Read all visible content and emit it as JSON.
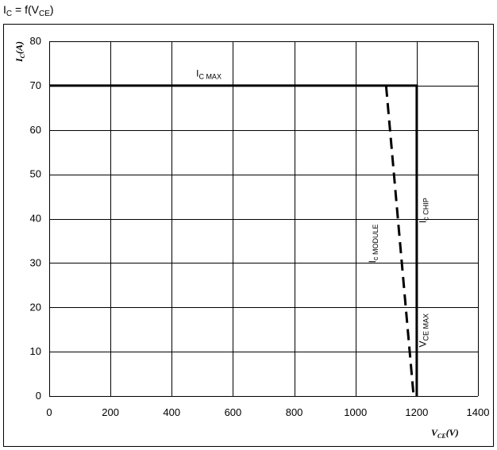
{
  "chart_data": {
    "type": "line",
    "title": {
      "main": "I",
      "main_sub": "C",
      "rest": " = f(V",
      "rest_sub": "CE",
      "tail": ")"
    },
    "xlabel": {
      "main": "V",
      "sub": "CE",
      "unit": "(V)"
    },
    "ylabel": {
      "main": "I",
      "sub": "C",
      "unit": "(A)"
    },
    "xlim": [
      0,
      1400
    ],
    "ylim": [
      0,
      80
    ],
    "xticks": [
      0,
      200,
      400,
      600,
      800,
      1000,
      1200,
      1400
    ],
    "yticks": [
      0,
      10,
      20,
      30,
      40,
      50,
      60,
      70,
      80
    ],
    "grid": true,
    "series": [
      {
        "name": "I_C CHIP",
        "style": "solid",
        "color": "#000000",
        "x": [
          0,
          1200,
          1200
        ],
        "y": [
          70,
          70,
          0
        ]
      },
      {
        "name": "I_C MODULE",
        "style": "dashed",
        "color": "#000000",
        "x": [
          1100,
          1190
        ],
        "y": [
          70,
          0
        ]
      }
    ],
    "annotations": [
      {
        "main": "I",
        "sub": "C MAX",
        "x": 480,
        "y": 72,
        "rotate": false
      },
      {
        "main": "I",
        "sub": "c  MODULE",
        "x": 1065,
        "y": 30,
        "rotate": true
      },
      {
        "main": "I",
        "sub": "c CHIP",
        "x": 1230,
        "y": 39,
        "rotate": true
      },
      {
        "main": "V",
        "sub": "CE MAX",
        "x": 1230,
        "y": 11,
        "rotate": true
      }
    ]
  }
}
